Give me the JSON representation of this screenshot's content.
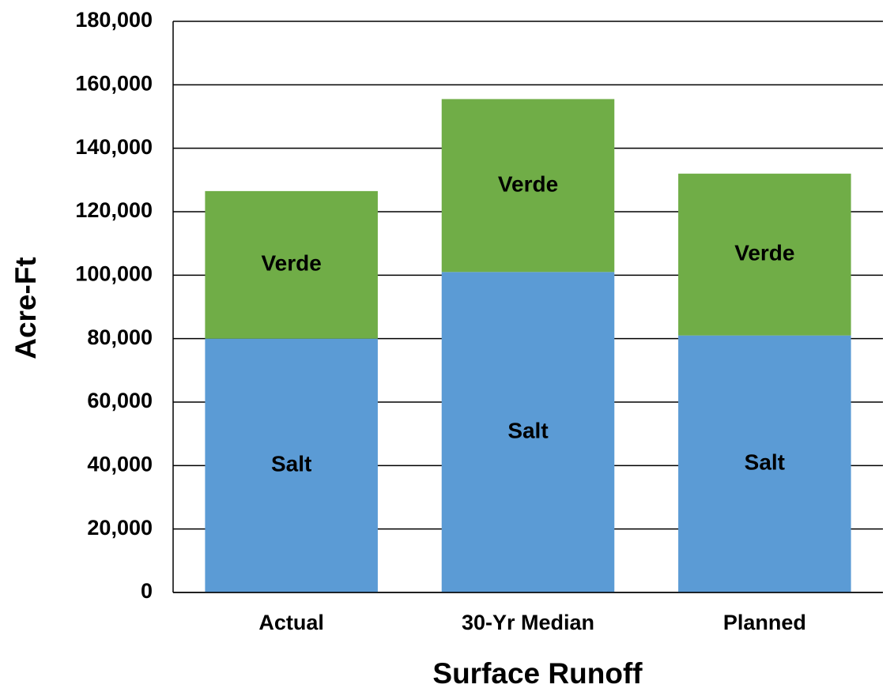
{
  "chart_data": {
    "type": "stacked_bar",
    "categories": [
      "Actual",
      "30-Yr Median",
      "Planned"
    ],
    "series": [
      {
        "name": "Salt",
        "color": "#5b9bd5",
        "values": [
          80000,
          101000,
          81000
        ]
      },
      {
        "name": "Verde",
        "color": "#70ad47",
        "values": [
          46500,
          54500,
          51000
        ]
      }
    ],
    "xlabel": "Surface Runoff",
    "ylabel": "Acre-Ft",
    "ylim": [
      0,
      180000
    ],
    "yticks": [
      0,
      {
        "value": 20000,
        "label": "20,000"
      },
      {
        "value": 40000,
        "label": "40,000"
      },
      {
        "value": 60000,
        "label": "60,000"
      },
      {
        "value": 80000,
        "label": "80,000"
      },
      {
        "value": 100000,
        "label": "100,000"
      },
      {
        "value": 120000,
        "label": "120,000"
      },
      {
        "value": 140000,
        "label": "140,000"
      },
      {
        "value": 160000,
        "label": "160,000"
      },
      {
        "value": 180000,
        "label": "180,000"
      }
    ],
    "grid": true
  }
}
